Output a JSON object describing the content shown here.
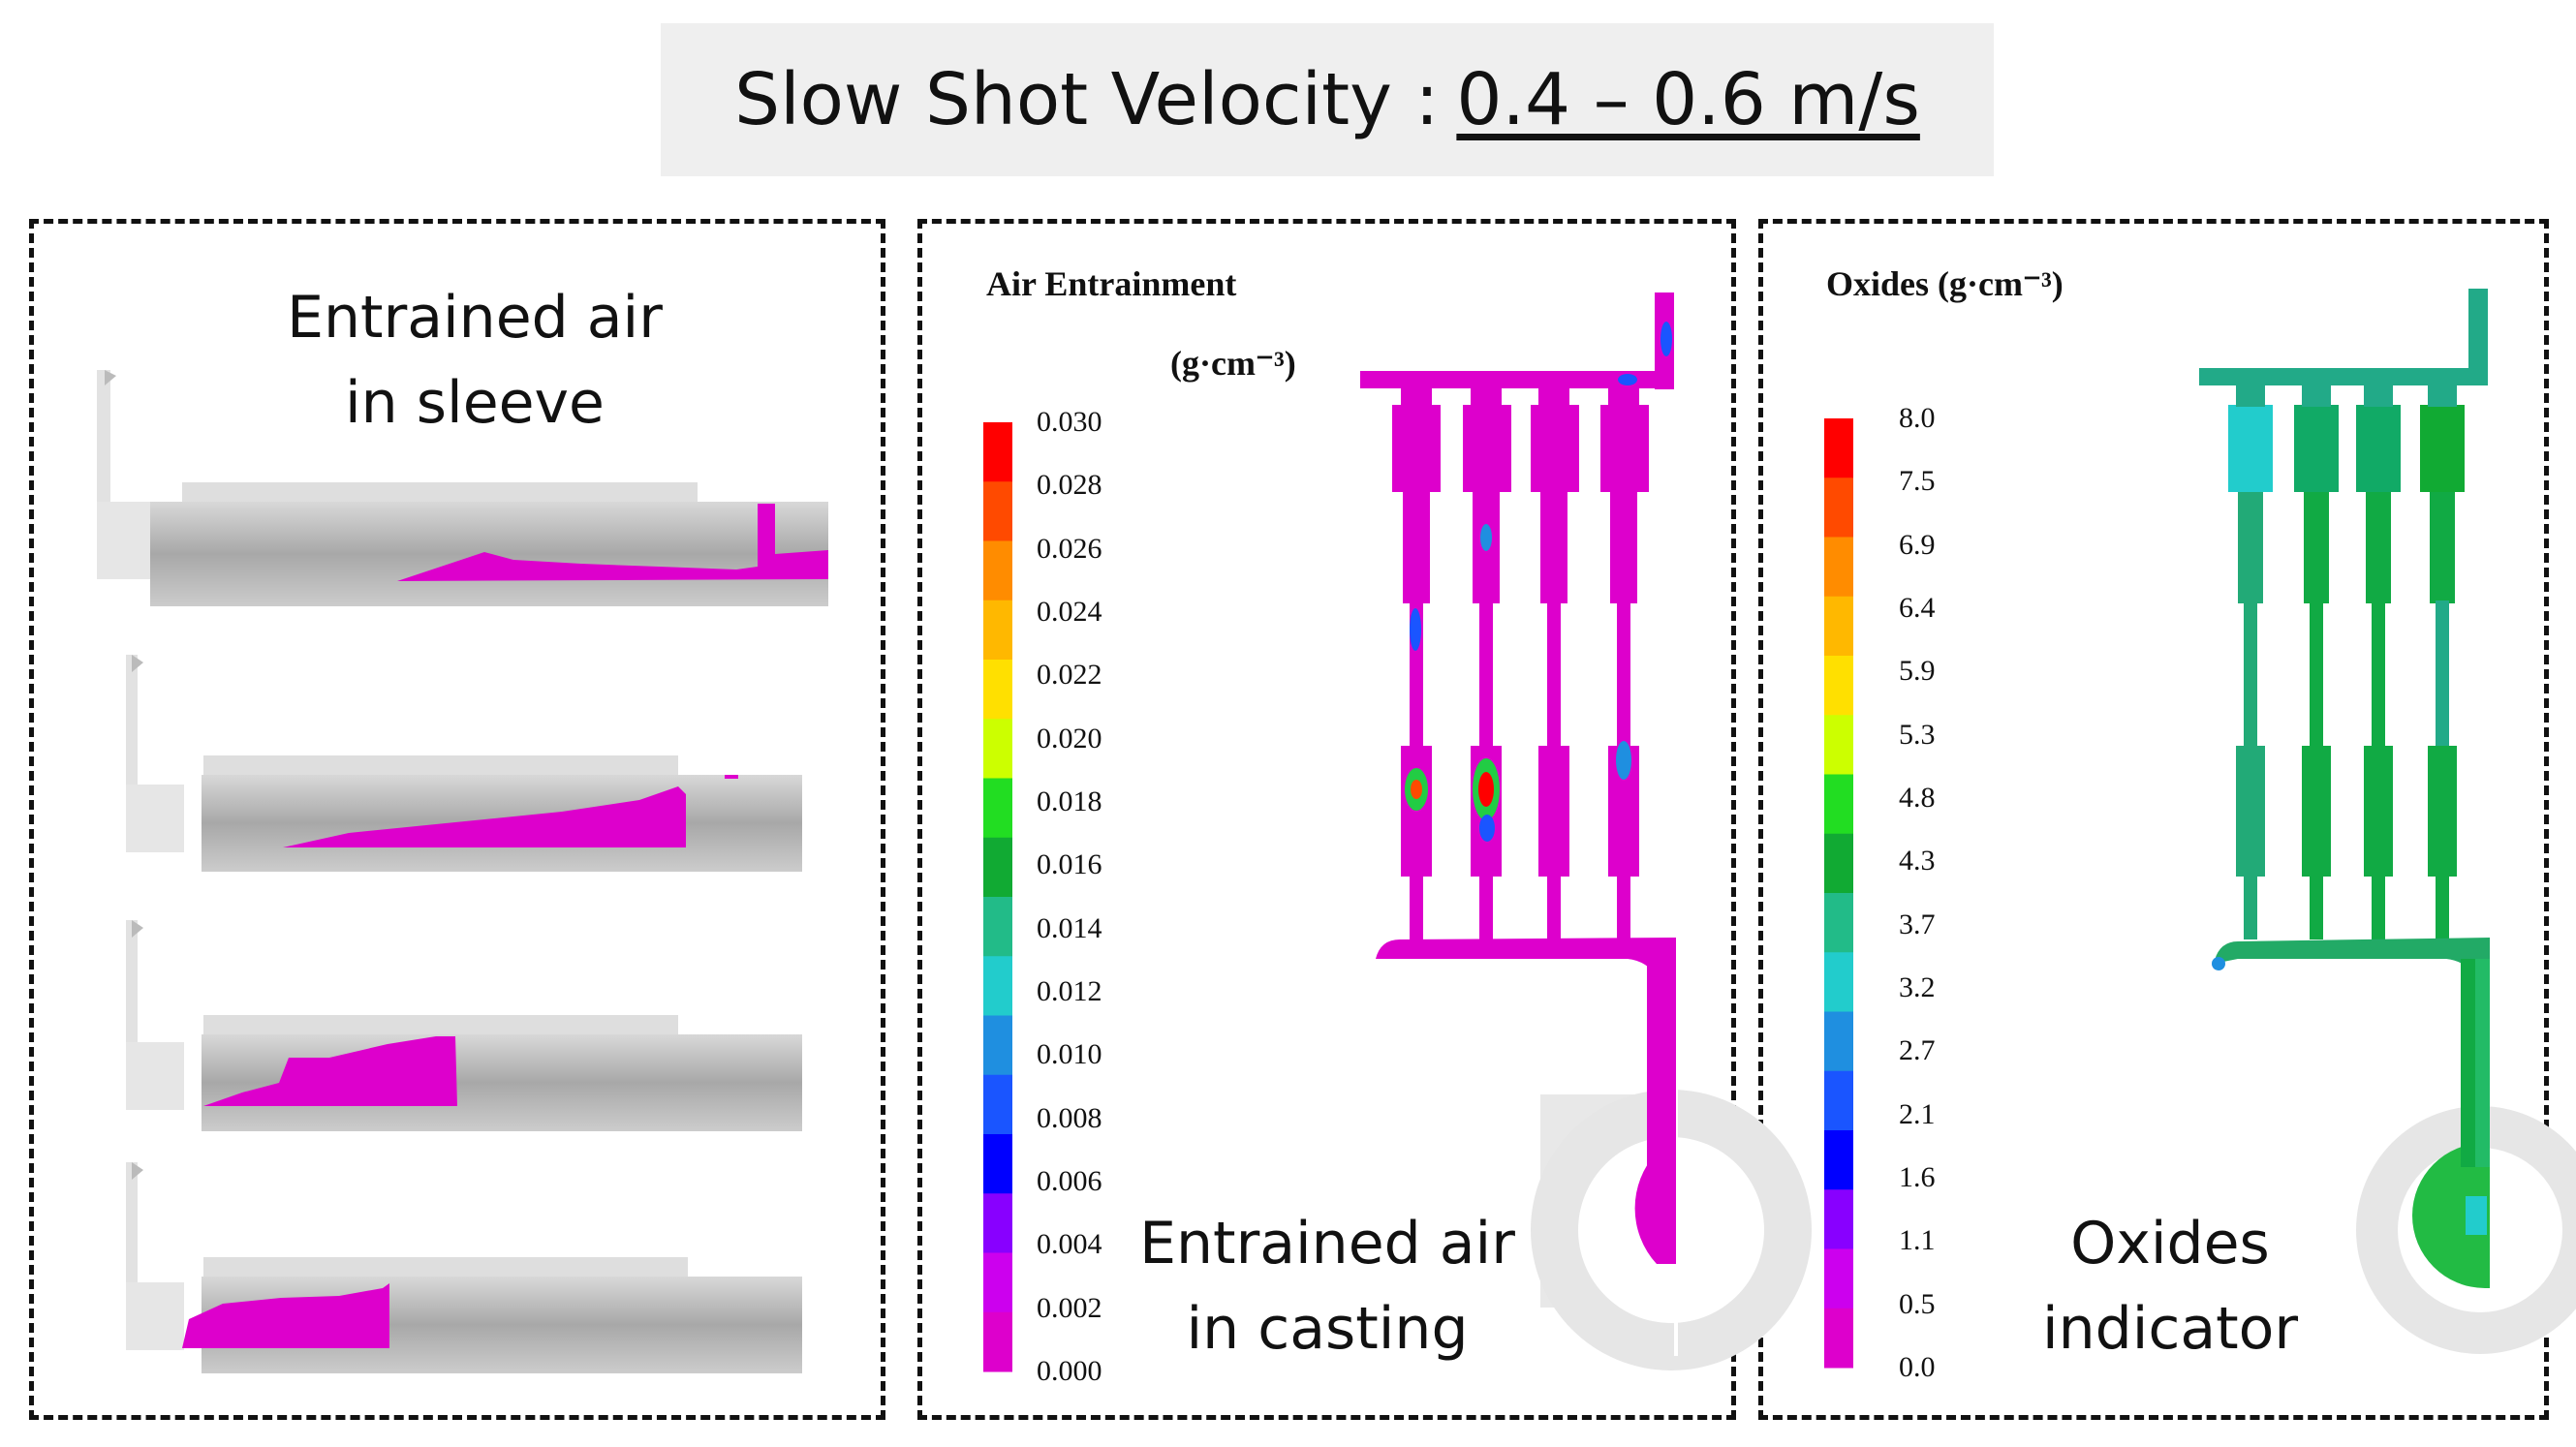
{
  "header": {
    "prefix": "Slow Shot Velocity :",
    "velocity": "0.4 – 0.6 m/s"
  },
  "panel_sleeve": {
    "label_line1": "Entrained air",
    "label_line2": "in sleeve"
  },
  "panel_casting": {
    "legend_title_line1": "Air Entrainment",
    "legend_title_line2": "(g·cm⁻³)",
    "ticks": [
      "0.030",
      "0.028",
      "0.026",
      "0.024",
      "0.022",
      "0.020",
      "0.018",
      "0.016",
      "0.014",
      "0.012",
      "0.010",
      "0.008",
      "0.006",
      "0.004",
      "0.002",
      "0.000"
    ],
    "label_line1": "Entrained air",
    "label_line2": "in casting"
  },
  "panel_oxides": {
    "legend_title": "Oxides  (g·cm⁻³)",
    "ticks": [
      "8.0",
      "7.5",
      "6.9",
      "6.4",
      "5.9",
      "5.3",
      "4.8",
      "4.3",
      "3.7",
      "3.2",
      "2.7",
      "2.1",
      "1.6",
      "1.1",
      "0.5",
      "0.0"
    ],
    "label_line1": "Oxides",
    "label_line2": "indicator"
  },
  "colors": {
    "colormap": [
      "#ff0000",
      "#ff4a00",
      "#ff8c00",
      "#ffb800",
      "#ffe000",
      "#ccff00",
      "#22dd22",
      "#11aa33",
      "#22bb88",
      "#22cccc",
      "#1f8fe0",
      "#1a55ff",
      "#0000ff",
      "#8800ff",
      "#cc00ee",
      "#dd00cc"
    ],
    "melt": "#dd00cc",
    "gray_dark": "#aaaaaa",
    "gray_light": "#dddddd"
  }
}
